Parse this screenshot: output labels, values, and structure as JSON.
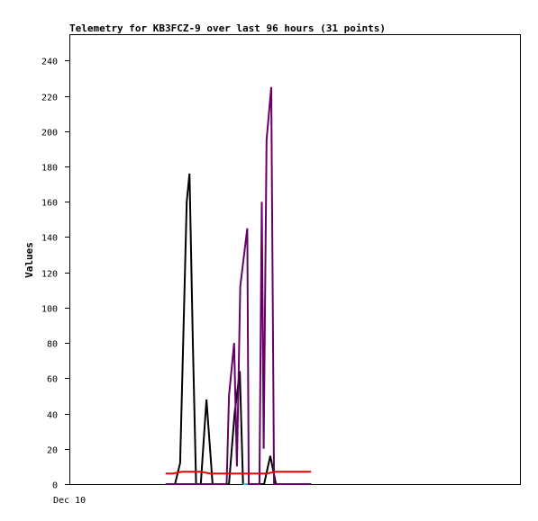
{
  "chart_data": {
    "type": "line",
    "title": "Telemetry for KB3FCZ-9 over last 96 hours (31 points)",
    "xlabel": "",
    "ylabel": "Values",
    "x_tick_labels": [
      "Dec 10"
    ],
    "ylim": [
      0,
      255
    ],
    "xlim": [
      0,
      96
    ],
    "y_ticks": [
      0,
      20,
      40,
      60,
      80,
      100,
      120,
      140,
      160,
      180,
      200,
      220,
      240
    ],
    "grid": false,
    "legend": "none",
    "series": [
      {
        "color": "#000000",
        "points": [
          [
            20.5,
            0
          ],
          [
            22.5,
            0
          ],
          [
            23.6,
            12
          ],
          [
            25.0,
            160
          ],
          [
            25.6,
            176
          ],
          [
            26.3,
            80
          ],
          [
            27.0,
            0
          ],
          [
            28.0,
            0
          ],
          [
            29.2,
            48
          ],
          [
            30.5,
            0
          ],
          [
            34.0,
            0
          ],
          [
            35.2,
            40
          ],
          [
            36.3,
            64
          ],
          [
            37.0,
            0
          ],
          [
            41.5,
            0
          ],
          [
            42.8,
            16
          ],
          [
            44.0,
            0
          ],
          [
            51.5,
            0
          ]
        ]
      },
      {
        "color": "#660066",
        "points": [
          [
            20.5,
            0
          ],
          [
            33.5,
            0
          ],
          [
            34.0,
            50
          ],
          [
            35.1,
            80
          ],
          [
            35.7,
            10
          ],
          [
            36.4,
            112
          ],
          [
            37.9,
            145
          ],
          [
            38.2,
            0
          ],
          [
            40.5,
            0
          ],
          [
            41.0,
            160
          ],
          [
            41.4,
            20
          ],
          [
            42.0,
            195
          ],
          [
            43.0,
            225
          ],
          [
            43.6,
            0
          ],
          [
            51.5,
            0
          ]
        ]
      },
      {
        "color": "#ee0000",
        "points": [
          [
            20.5,
            6
          ],
          [
            22.0,
            6
          ],
          [
            24.0,
            7
          ],
          [
            28.0,
            7
          ],
          [
            30.0,
            6
          ],
          [
            34.0,
            6
          ],
          [
            36.0,
            6
          ],
          [
            42.0,
            6
          ],
          [
            44.0,
            7
          ],
          [
            51.5,
            7
          ]
        ]
      },
      {
        "color": "#33cccc",
        "points": [
          [
            37.0,
            0
          ],
          [
            38.0,
            0
          ]
        ]
      }
    ]
  }
}
